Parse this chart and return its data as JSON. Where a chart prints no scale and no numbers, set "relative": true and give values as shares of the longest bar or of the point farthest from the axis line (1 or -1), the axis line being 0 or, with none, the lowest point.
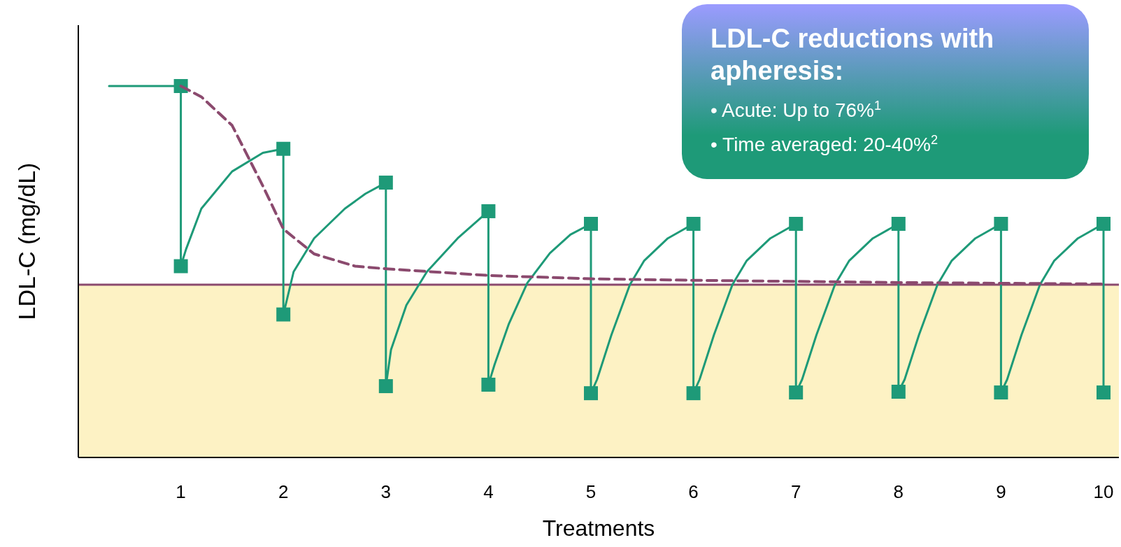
{
  "chart_data": {
    "type": "line",
    "relative": true,
    "xlabel": "Treatments",
    "ylabel": "LDL-C (mg/dL)",
    "xlim": [
      0,
      10.15
    ],
    "xticks": [
      1,
      2,
      3,
      4,
      5,
      6,
      7,
      8,
      9,
      10
    ],
    "tick_labels": "x",
    "annotations": [
      "LDL-C reductions with apheresis:",
      "• Acute: Up to 76%$^{1}$",
      "• Time averaged: 20-40%$^{2}$"
    ],
    "bands": [
      {
        "axis": "y",
        "from": 0,
        "to": 0.465,
        "color": "#fdf2c4"
      }
    ],
    "ref_lines": [
      {
        "axis": "y",
        "value": 0.465,
        "color": "#8b4a6e",
        "line_style": "solid"
      }
    ],
    "series": [
      {
        "color": "#1e9a78",
        "marker": "none",
        "line_style": "solid",
        "x": [
          0.3,
          1,
          1,
          1.05,
          1.2,
          1.5,
          1.8,
          2,
          2,
          2.1,
          2.3,
          2.6,
          2.8,
          3,
          3,
          3.05,
          3.2,
          3.4,
          3.7,
          4,
          4,
          4.06,
          4.2,
          4.38,
          4.6,
          4.8,
          5,
          5,
          5.06,
          5.2,
          5.38,
          5.52,
          5.75,
          6,
          6,
          6.06,
          6.2,
          6.38,
          6.52,
          6.75,
          7,
          7,
          7.06,
          7.2,
          7.38,
          7.52,
          7.75,
          8,
          8,
          8.06,
          8.2,
          8.38,
          8.52,
          8.75,
          9,
          9,
          9.06,
          9.2,
          9.38,
          9.52,
          9.75,
          10,
          10
        ],
        "values": [
          1,
          1,
          0.515,
          0.56,
          0.67,
          0.77,
          0.82,
          0.831,
          0.385,
          0.5,
          0.59,
          0.67,
          0.71,
          0.74,
          0.192,
          0.29,
          0.41,
          0.5,
          0.59,
          0.663,
          0.196,
          0.25,
          0.36,
          0.47,
          0.55,
          0.6,
          0.629,
          0.173,
          0.21,
          0.33,
          0.465,
          0.53,
          0.59,
          0.629,
          0.173,
          0.21,
          0.33,
          0.465,
          0.53,
          0.59,
          0.629,
          0.175,
          0.21,
          0.33,
          0.465,
          0.53,
          0.59,
          0.629,
          0.177,
          0.21,
          0.33,
          0.465,
          0.53,
          0.59,
          0.629,
          0.175,
          0.21,
          0.33,
          0.465,
          0.53,
          0.59,
          0.629,
          0.175
        ]
      },
      {
        "type": "scatter",
        "color": "#1e9a78",
        "marker": "square",
        "x": [
          1,
          1,
          2,
          2,
          3,
          3,
          4,
          4,
          5,
          5,
          6,
          6,
          7,
          7,
          8,
          8,
          9,
          9,
          10,
          10
        ],
        "values": [
          1,
          0.515,
          0.831,
          0.385,
          0.74,
          0.192,
          0.663,
          0.196,
          0.629,
          0.173,
          0.629,
          0.173,
          0.629,
          0.175,
          0.629,
          0.177,
          0.629,
          0.175,
          0.629,
          0.175
        ]
      },
      {
        "color": "#8b4a6e",
        "marker": "none",
        "line_style": "dashed",
        "x": [
          1,
          1.2,
          1.5,
          1.8,
          2,
          2.3,
          2.7,
          3,
          4,
          5,
          6,
          8,
          10
        ],
        "values": [
          1,
          0.971,
          0.894,
          0.731,
          0.615,
          0.548,
          0.515,
          0.508,
          0.49,
          0.481,
          0.477,
          0.471,
          0.467
        ]
      }
    ]
  }
}
